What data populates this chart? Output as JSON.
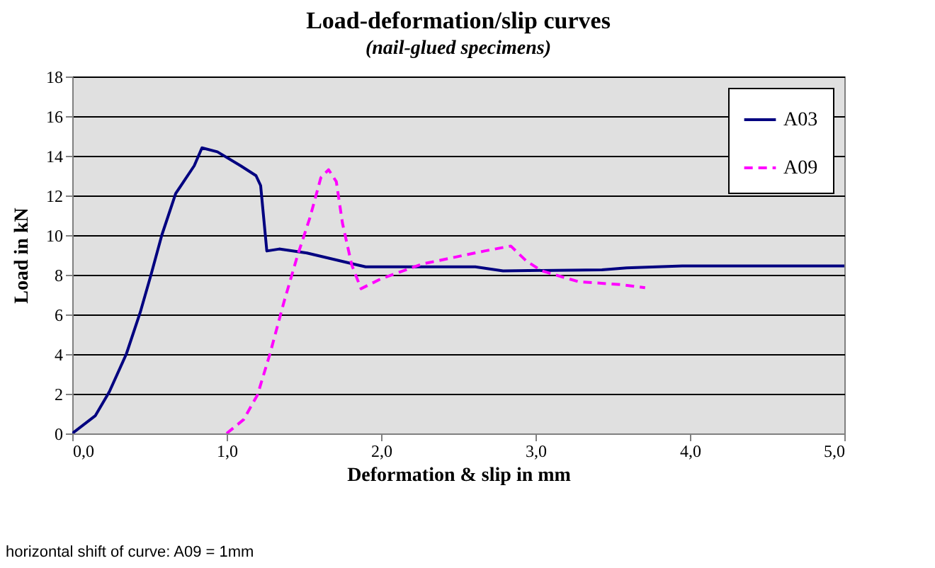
{
  "chart_data": {
    "type": "line",
    "title": "Load-deformation/slip curves",
    "subtitle": "(nail-glued specimens)",
    "xlabel": "Deformation & slip in mm",
    "ylabel": "Load in kN",
    "annotations": [
      "horizontal shift of curve: A09 = 1mm"
    ],
    "series": [
      {
        "name": "A03",
        "color": "#000080",
        "line_style": "solid",
        "x": [
          0,
          0.15,
          0.24,
          0.35,
          0.44,
          0.51,
          0.58,
          0.67,
          0.79,
          0.84,
          0.94,
          1.09,
          1.19,
          1.22,
          1.26,
          1.34,
          1.52,
          1.9,
          2.61,
          2.79,
          3.43,
          3.59,
          3.95,
          5.0
        ],
        "values": [
          0,
          0.9,
          2.1,
          4.0,
          6.1,
          8.0,
          10.0,
          12.1,
          13.5,
          14.4,
          14.2,
          13.5,
          13.0,
          12.5,
          9.2,
          9.3,
          9.1,
          8.4,
          8.4,
          8.2,
          8.25,
          8.35,
          8.45,
          8.45
        ]
      },
      {
        "name": "A09",
        "color": "#ff00ff",
        "line_style": "dashed",
        "x": [
          1.0,
          1.11,
          1.2,
          1.28,
          1.37,
          1.46,
          1.54,
          1.61,
          1.66,
          1.71,
          1.75,
          1.81,
          1.87,
          2.0,
          2.27,
          2.67,
          2.84,
          2.94,
          3.04,
          3.28,
          3.56,
          3.71
        ],
        "values": [
          0,
          0.7,
          1.95,
          4.0,
          6.6,
          9.0,
          10.9,
          12.9,
          13.3,
          12.7,
          10.6,
          8.5,
          7.3,
          7.8,
          8.55,
          9.2,
          9.45,
          8.7,
          8.2,
          7.65,
          7.5,
          7.35
        ]
      }
    ],
    "xlim": [
      0,
      5
    ],
    "xticks": [
      {
        "value": 0,
        "label": "0,0"
      },
      {
        "value": 1,
        "label": "1,0"
      },
      {
        "value": 2,
        "label": "2,0"
      },
      {
        "value": 3,
        "label": "3,0"
      },
      {
        "value": 4,
        "label": "4,0"
      },
      {
        "value": 5,
        "label": "5,0"
      }
    ],
    "ylim": [
      0,
      18
    ],
    "yticks": [
      0,
      2,
      4,
      6,
      8,
      10,
      12,
      14,
      16,
      18
    ],
    "grid": "y",
    "legend": "top right",
    "marker": "none"
  }
}
